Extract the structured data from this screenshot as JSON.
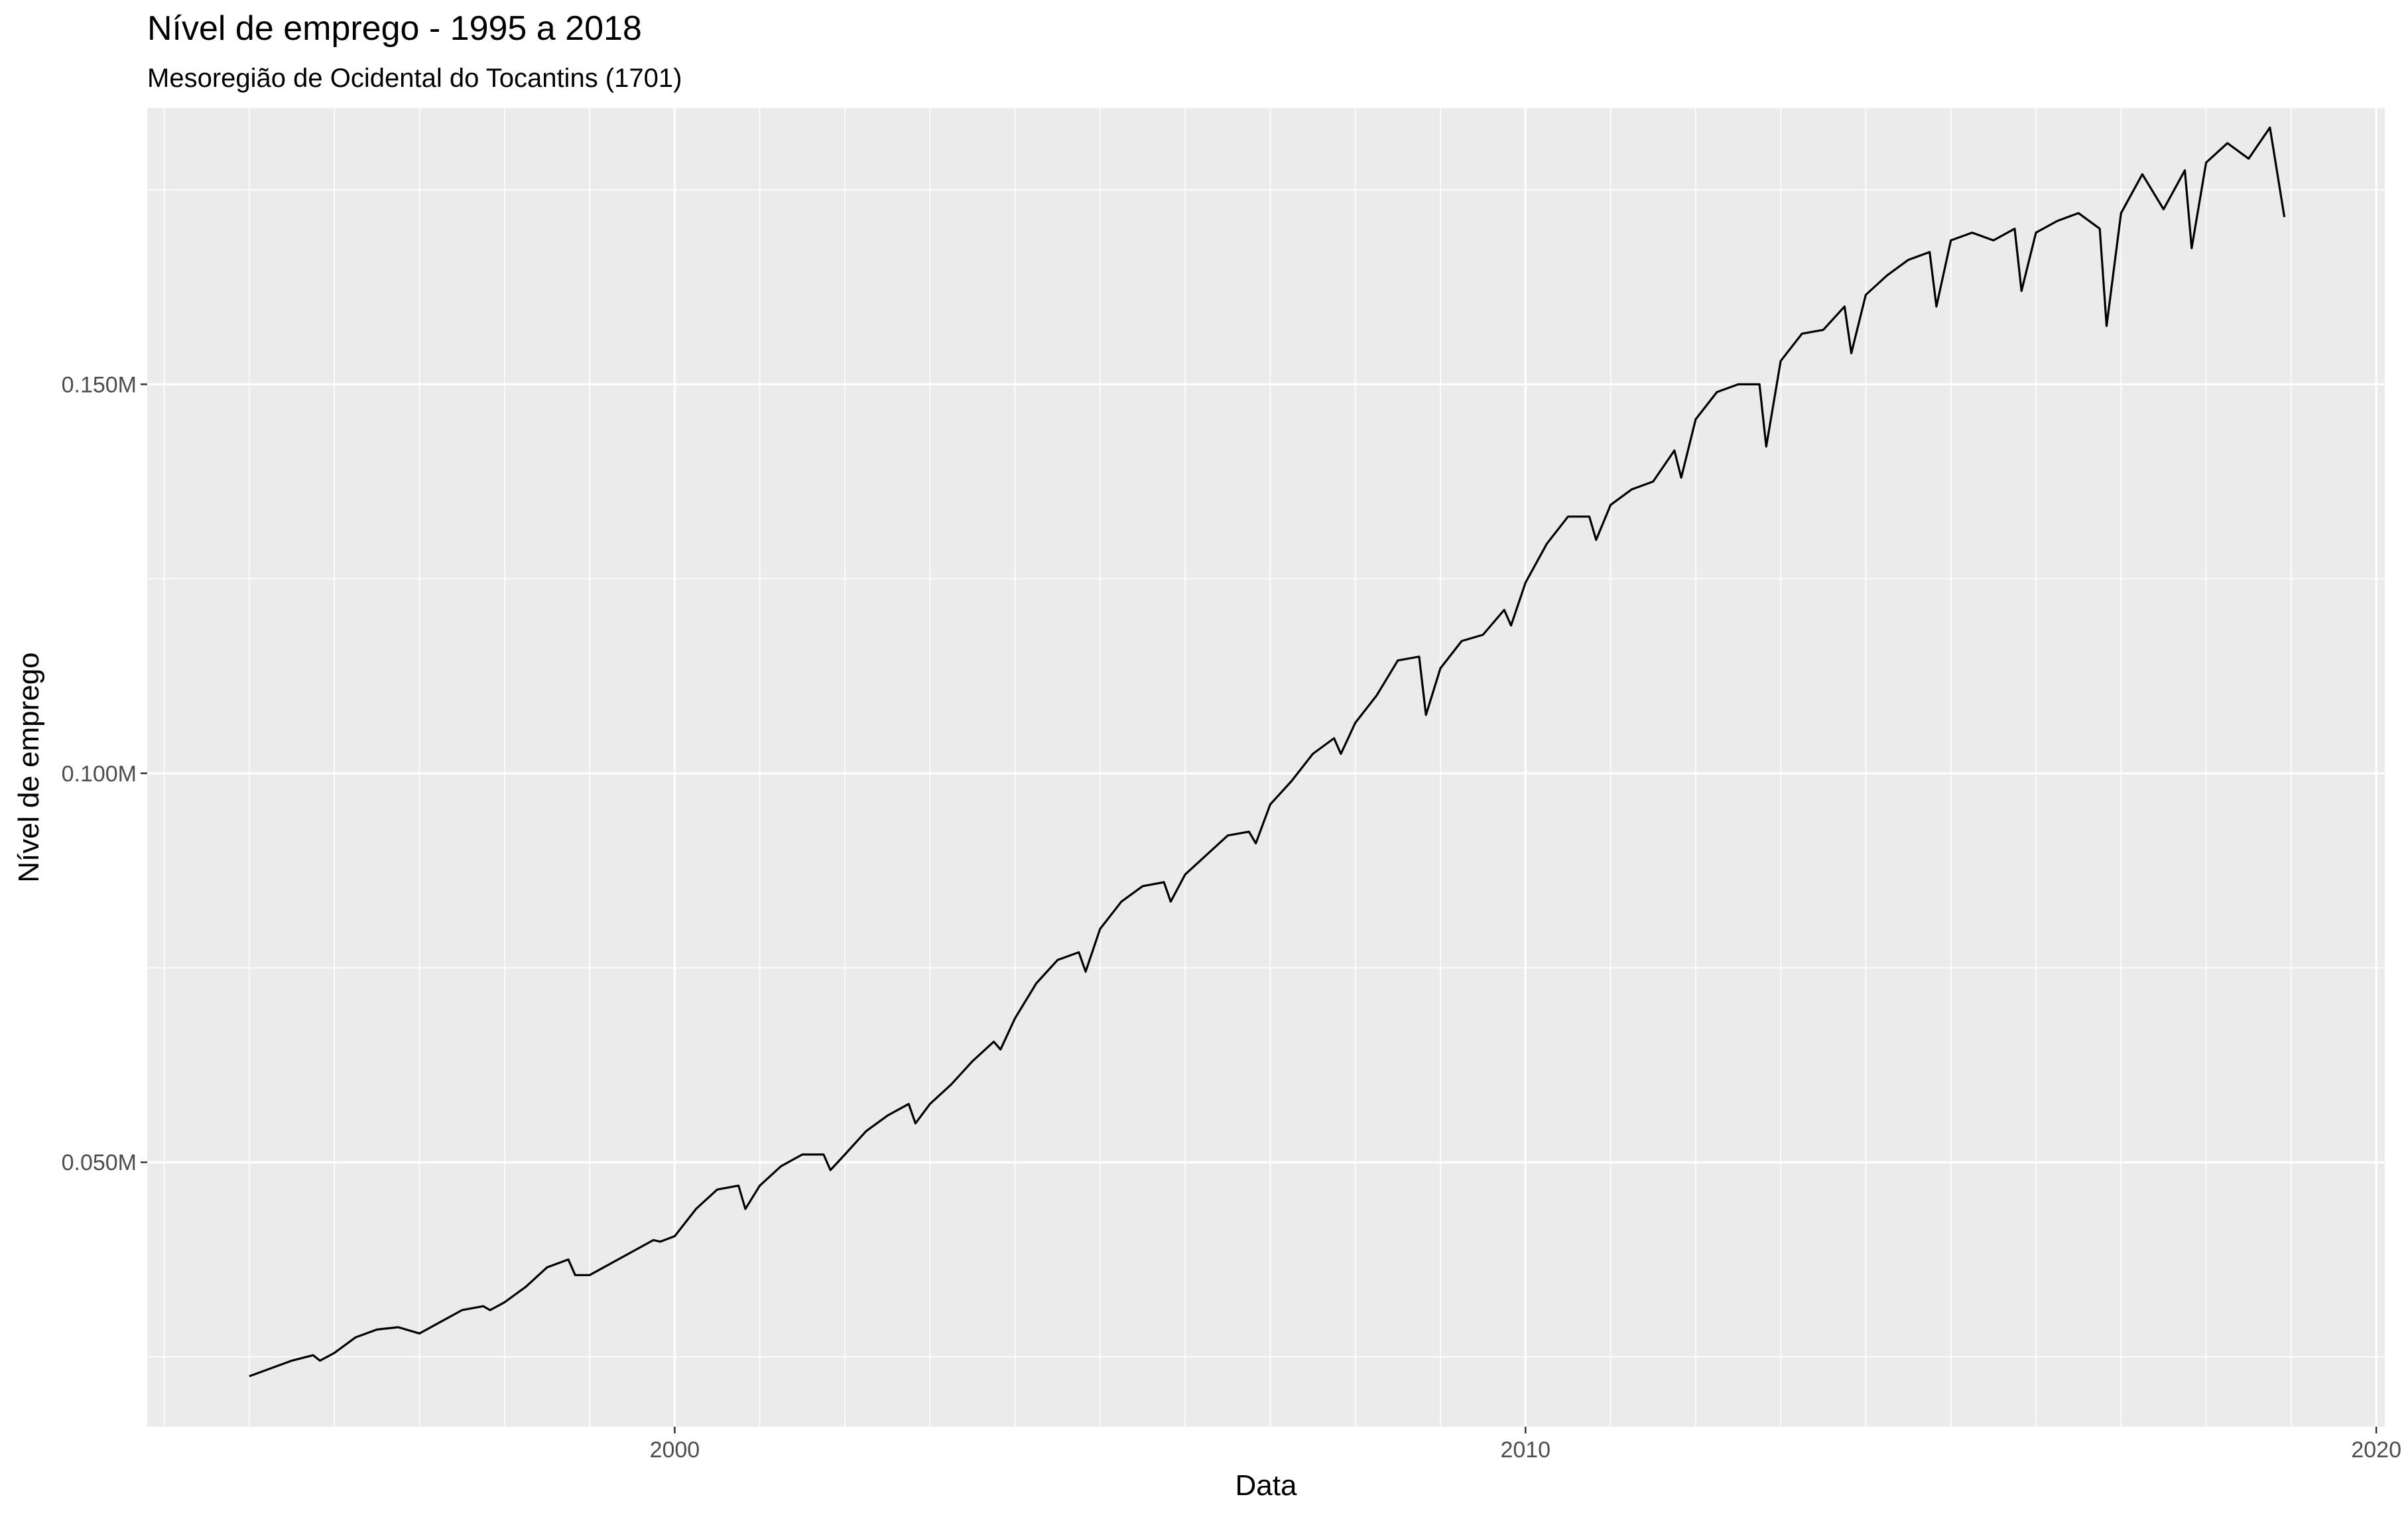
{
  "chart_data": {
    "type": "line",
    "title": "Nível de emprego - 1995 a 2018",
    "subtitle": "Mesoregião de Ocidental do Tocantins (1701)",
    "xlabel": "Data",
    "ylabel": "Nível de emprego",
    "xlim": [
      1993.8,
      2020.1
    ],
    "ylim": [
      16000,
      185500
    ],
    "x_ticks": [
      2000,
      2010,
      2020
    ],
    "x_tick_labels": [
      "2000",
      "2010",
      "2020"
    ],
    "y_ticks": [
      50000,
      100000,
      150000
    ],
    "y_tick_labels": [
      "0.050M",
      "0.100M",
      "0.150M"
    ],
    "grid": true,
    "legend": "none",
    "background": "#ebebeb",
    "line_color": "#000000",
    "series": [
      {
        "x": [
          1995.0,
          1995.25,
          1995.5,
          1995.75,
          1995.83,
          1996.0,
          1996.25,
          1996.5,
          1996.75,
          1997.0,
          1997.25,
          1997.5,
          1997.75,
          1997.83,
          1998.0,
          1998.25,
          1998.5,
          1998.75,
          1998.83,
          1999.0,
          1999.25,
          1999.5,
          1999.75,
          1999.83,
          2000.0,
          2000.25,
          2000.5,
          2000.75,
          2000.83,
          2001.0,
          2001.25,
          2001.5,
          2001.75,
          2001.83,
          2002.0,
          2002.25,
          2002.5,
          2002.75,
          2002.83,
          2003.0,
          2003.25,
          2003.5,
          2003.75,
          2003.83,
          2004.0,
          2004.25,
          2004.5,
          2004.75,
          2004.83,
          2005.0,
          2005.25,
          2005.5,
          2005.75,
          2005.83,
          2006.0,
          2006.25,
          2006.5,
          2006.75,
          2006.83,
          2007.0,
          2007.25,
          2007.5,
          2007.75,
          2007.83,
          2008.0,
          2008.25,
          2008.5,
          2008.75,
          2008.83,
          2009.0,
          2009.25,
          2009.5,
          2009.75,
          2009.83,
          2010.0,
          2010.25,
          2010.5,
          2010.75,
          2010.83,
          2011.0,
          2011.25,
          2011.5,
          2011.75,
          2011.83,
          2012.0,
          2012.25,
          2012.5,
          2012.75,
          2012.83,
          2013.0,
          2013.25,
          2013.5,
          2013.75,
          2013.83,
          2014.0,
          2014.25,
          2014.5,
          2014.75,
          2014.83,
          2015.0,
          2015.25,
          2015.5,
          2015.75,
          2015.83,
          2016.0,
          2016.25,
          2016.5,
          2016.75,
          2016.83,
          2017.0,
          2017.25,
          2017.5,
          2017.75,
          2017.83,
          2018.0,
          2018.25,
          2018.5,
          2018.75,
          2018.92
        ],
        "y": [
          22500,
          23500,
          24500,
          25200,
          24500,
          25500,
          27500,
          28500,
          28800,
          28000,
          29500,
          31000,
          31500,
          31000,
          32000,
          34000,
          36500,
          37500,
          35500,
          35500,
          37000,
          38500,
          40000,
          39800,
          40500,
          44000,
          46500,
          47000,
          44000,
          47000,
          49500,
          51000,
          51000,
          49000,
          51000,
          54000,
          56000,
          57500,
          55000,
          57500,
          60000,
          63000,
          65500,
          64500,
          68500,
          73000,
          76000,
          77000,
          74500,
          80000,
          83500,
          85500,
          86000,
          83500,
          87000,
          89500,
          92000,
          92500,
          91000,
          96000,
          99000,
          102500,
          104500,
          102500,
          106500,
          110000,
          114500,
          115000,
          107500,
          113500,
          117000,
          117800,
          121000,
          119000,
          124500,
          129500,
          133000,
          133000,
          130000,
          134500,
          136500,
          137500,
          141500,
          138000,
          145500,
          149000,
          150000,
          150000,
          142000,
          153000,
          156500,
          157000,
          160000,
          154000,
          161500,
          164000,
          166000,
          167000,
          160000,
          168500,
          169500,
          168500,
          170000,
          162000,
          169500,
          171000,
          172000,
          170000,
          157500,
          172000,
          177000,
          172500,
          177500,
          167500,
          178500,
          181000,
          179000,
          183000,
          171500
        ]
      }
    ]
  }
}
